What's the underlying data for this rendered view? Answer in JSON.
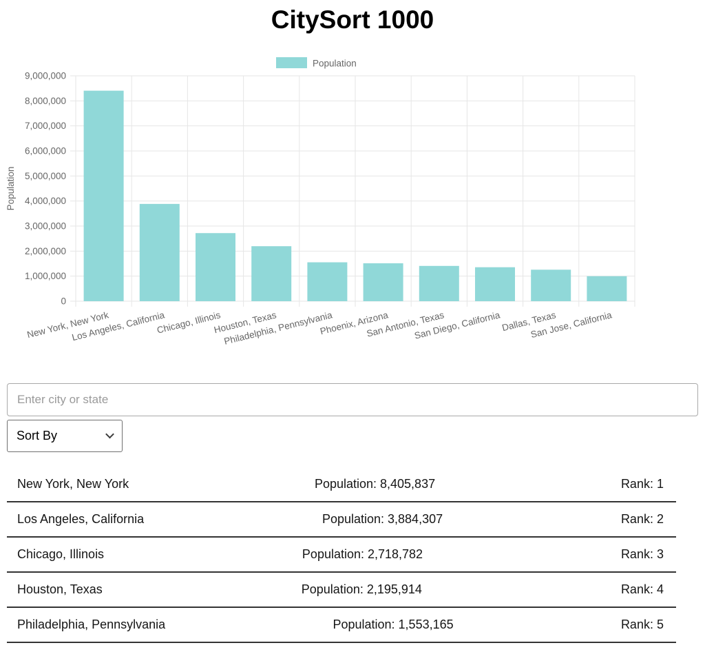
{
  "page": {
    "title": "CitySort 1000"
  },
  "chart_data": {
    "type": "bar",
    "title": "",
    "legend_position": "top",
    "grid": true,
    "categories": [
      "New York, New York",
      "Los Angeles, California",
      "Chicago, Illinois",
      "Houston, Texas",
      "Philadelphia, Pennsylvania",
      "Phoenix, Arizona",
      "San Antonio, Texas",
      "San Diego, California",
      "Dallas, Texas",
      "San Jose, California"
    ],
    "series": [
      {
        "name": "Population",
        "values": [
          8405837,
          3884307,
          2718782,
          2195914,
          1553165,
          1513367,
          1409019,
          1355896,
          1257676,
          998537
        ]
      }
    ],
    "xlabel": "",
    "ylabel": "Population",
    "ylim": [
      0,
      9000000
    ],
    "ytick_step": 1000000,
    "bar_color": "#90d8d8",
    "axis_text_color": "#666666",
    "gridline_color": "#e6e6e6"
  },
  "search": {
    "placeholder": "Enter city or state"
  },
  "sort": {
    "selected": "Sort By",
    "options": [
      "Sort By"
    ]
  },
  "list": {
    "rows": [
      {
        "city": "New York, New York",
        "population_label": "Population: 8,405,837",
        "rank_label": "Rank: 1"
      },
      {
        "city": "Los Angeles, California",
        "population_label": "Population: 3,884,307",
        "rank_label": "Rank: 2"
      },
      {
        "city": "Chicago, Illinois",
        "population_label": "Population: 2,718,782",
        "rank_label": "Rank: 3"
      },
      {
        "city": "Houston, Texas",
        "population_label": "Population: 2,195,914",
        "rank_label": "Rank: 4"
      },
      {
        "city": "Philadelphia, Pennsylvania",
        "population_label": "Population: 1,553,165",
        "rank_label": "Rank: 5"
      }
    ]
  }
}
